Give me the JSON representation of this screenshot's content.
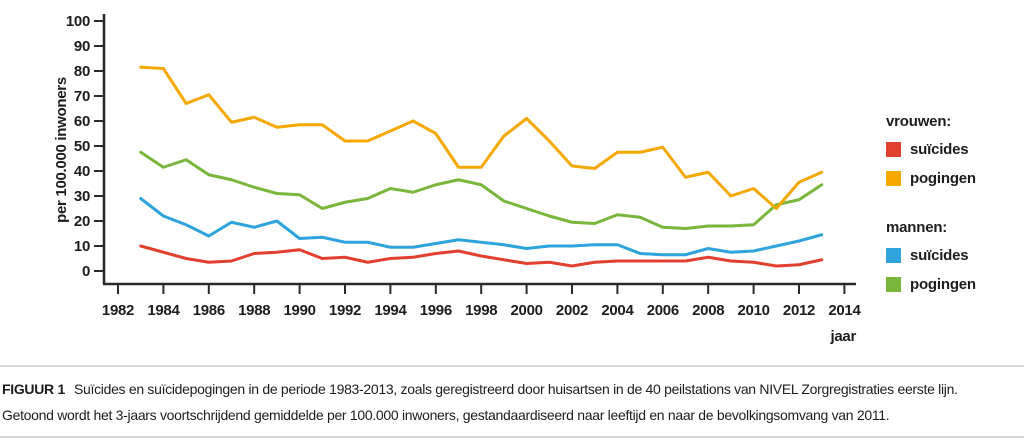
{
  "figure": {
    "caption_label": "FIGUUR 1",
    "caption_line1": "Suïcides en suïcidepogingen in de periode 1983-2013, zoals geregistreerd door huisartsen in de 40 peilstations van NIVEL Zorgregistraties eerste lijn.",
    "caption_line2": "Getoond wordt het 3-jaars voortschrijdend gemiddelde per 100.000 inwoners, gestandaardiseerd naar leeftijd en naar de bevolkingsomvang van 2011."
  },
  "colors": {
    "vrouwen_suicides": "#e2402f",
    "vrouwen_pogingen": "#f5a800",
    "mannen_suicides": "#2ea3dc",
    "mannen_pogingen": "#7ab63c",
    "axis": "#2b2a29",
    "rule": "#d9d9d9"
  },
  "legend": {
    "groups": [
      {
        "title": "vrouwen:",
        "items": [
          {
            "label": "suïcides",
            "color": "#e2402f"
          },
          {
            "label": "pogingen",
            "color": "#f5a800"
          }
        ]
      },
      {
        "title": "mannen:",
        "items": [
          {
            "label": "suïcides",
            "color": "#2ea3dc"
          },
          {
            "label": "pogingen",
            "color": "#7ab63c"
          }
        ]
      }
    ]
  },
  "chart_data": {
    "type": "line",
    "title": "",
    "xlabel": "jaar",
    "ylabel": "per 100.000 inwoners",
    "xlim": [
      1982,
      2014
    ],
    "ylim": [
      0,
      100
    ],
    "grid": false,
    "legend_position": "right",
    "xticks": [
      1982,
      1984,
      1986,
      1988,
      1990,
      1992,
      1994,
      1996,
      1998,
      2000,
      2002,
      2004,
      2006,
      2008,
      2010,
      2012,
      2014
    ],
    "yticks": [
      0,
      10,
      20,
      30,
      40,
      50,
      60,
      70,
      80,
      90,
      100
    ],
    "x": [
      1983,
      1984,
      1985,
      1986,
      1987,
      1988,
      1989,
      1990,
      1991,
      1992,
      1993,
      1994,
      1995,
      1996,
      1997,
      1998,
      1999,
      2000,
      2001,
      2002,
      2003,
      2004,
      2005,
      2006,
      2007,
      2008,
      2009,
      2010,
      2011,
      2012,
      2013
    ],
    "series": [
      {
        "id": "mannen-pogingen",
        "name": "mannen: pogingen",
        "color": "#7ab63c",
        "values": [
          47.5,
          41.5,
          44.5,
          38.5,
          36.5,
          33.5,
          31,
          30.5,
          25,
          27.5,
          29,
          33,
          31.5,
          34.5,
          36.5,
          34.5,
          28,
          25,
          22,
          19.5,
          19,
          22.5,
          21.5,
          17.5,
          17,
          18,
          18,
          18.5,
          26.5,
          28.5,
          34.5
        ]
      },
      {
        "id": "vrouwen-pogingen",
        "name": "vrouwen: pogingen",
        "color": "#f5a800",
        "values": [
          81.5,
          81,
          67,
          70.5,
          59.5,
          61.5,
          57.5,
          58.5,
          58.5,
          52,
          52,
          56,
          60,
          55,
          41.5,
          41.5,
          54,
          61,
          52,
          42,
          41,
          47.5,
          47.5,
          49.5,
          37.5,
          39.5,
          30,
          33,
          25,
          35.5,
          39.5
        ]
      },
      {
        "id": "mannen-suicides",
        "name": "mannen: suïcides",
        "color": "#2ea3dc",
        "values": [
          29,
          22,
          18.5,
          14,
          19.5,
          17.5,
          20,
          13,
          13.5,
          11.5,
          11.5,
          9.5,
          9.5,
          11,
          12.5,
          11.5,
          10.5,
          9,
          10,
          10,
          10.5,
          10.5,
          7,
          6.5,
          6.5,
          9,
          7.5,
          8,
          10,
          12,
          14.5
        ]
      },
      {
        "id": "vrouwen-suicides",
        "name": "vrouwen: suïcides",
        "color": "#e2402f",
        "values": [
          10,
          7.5,
          5,
          3.5,
          4,
          7,
          7.5,
          8.5,
          5,
          5.5,
          3.5,
          5,
          5.5,
          7,
          8,
          6,
          4.5,
          3,
          3.5,
          2,
          3.5,
          4,
          4,
          4,
          4,
          5.5,
          4,
          3.5,
          2,
          2.5,
          4.5
        ]
      }
    ]
  }
}
